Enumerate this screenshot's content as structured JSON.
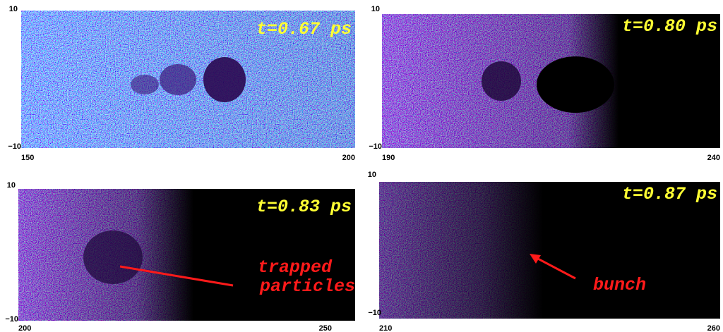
{
  "panels": [
    {
      "time": "t=0.67 ps",
      "y_top": "10",
      "y_bottom": "−10",
      "x_left": "150",
      "x_right": "200"
    },
    {
      "time": "t=0.80 ps",
      "y_top": "10",
      "y_bottom": "−10",
      "x_left": "190",
      "x_right": "240"
    },
    {
      "time": "t=0.83 ps",
      "y_top": "10",
      "y_bottom": "−10",
      "x_left": "200",
      "x_right": "250"
    },
    {
      "time": "t=0.87 ps",
      "y_top": "10",
      "y_bottom": "−10",
      "x_left": "210",
      "x_right": "260"
    }
  ],
  "annotations": {
    "trapped": [
      "trapped",
      "particles"
    ],
    "bunch": "bunch"
  }
}
